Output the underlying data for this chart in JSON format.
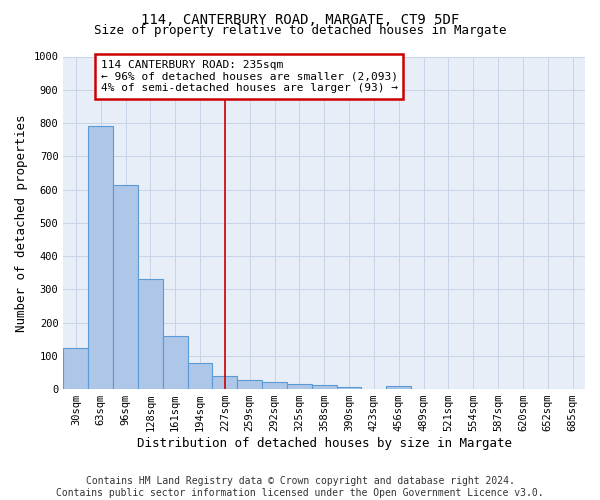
{
  "title": "114, CANTERBURY ROAD, MARGATE, CT9 5DF",
  "subtitle": "Size of property relative to detached houses in Margate",
  "xlabel": "Distribution of detached houses by size in Margate",
  "ylabel": "Number of detached properties",
  "categories": [
    "30sqm",
    "63sqm",
    "96sqm",
    "128sqm",
    "161sqm",
    "194sqm",
    "227sqm",
    "259sqm",
    "292sqm",
    "325sqm",
    "358sqm",
    "390sqm",
    "423sqm",
    "456sqm",
    "489sqm",
    "521sqm",
    "554sqm",
    "587sqm",
    "620sqm",
    "652sqm",
    "685sqm"
  ],
  "values": [
    125,
    790,
    615,
    330,
    160,
    78,
    40,
    27,
    22,
    15,
    13,
    7,
    0,
    10,
    0,
    0,
    0,
    0,
    0,
    0,
    0
  ],
  "bar_color": "#aec6e8",
  "bar_edge_color": "#5b9bd5",
  "bar_linewidth": 0.8,
  "grid_color": "#c8d4e8",
  "background_color": "#e8eef8",
  "vline_x_index": 6,
  "vline_color": "#cc0000",
  "vline_linewidth": 1.2,
  "annotation_line1": "114 CANTERBURY ROAD: 235sqm",
  "annotation_line2": "← 96% of detached houses are smaller (2,093)",
  "annotation_line3": "4% of semi-detached houses are larger (93) →",
  "annotation_box_color": "#cc0000",
  "annotation_bg_color": "#ffffff",
  "ylim": [
    0,
    1000
  ],
  "yticks": [
    0,
    100,
    200,
    300,
    400,
    500,
    600,
    700,
    800,
    900,
    1000
  ],
  "footer_line1": "Contains HM Land Registry data © Crown copyright and database right 2024.",
  "footer_line2": "Contains public sector information licensed under the Open Government Licence v3.0.",
  "title_fontsize": 10,
  "subtitle_fontsize": 9,
  "xlabel_fontsize": 9,
  "ylabel_fontsize": 9,
  "tick_fontsize": 7.5,
  "annotation_fontsize": 8,
  "footer_fontsize": 7
}
